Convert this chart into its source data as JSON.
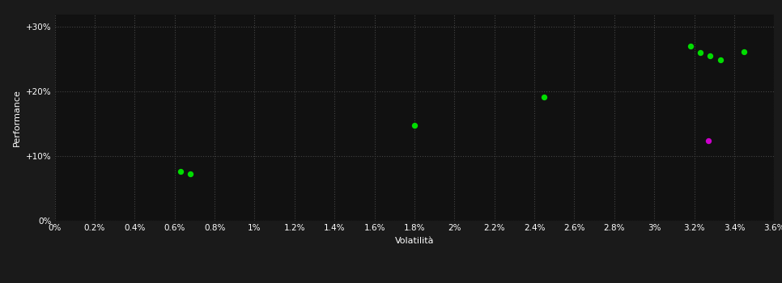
{
  "background_color": "#1a1a1a",
  "plot_bg_color": "#111111",
  "grid_color": "#444444",
  "text_color": "#ffffff",
  "xlabel": "Volatilità",
  "ylabel": "Performance",
  "xlim": [
    0.0,
    0.036
  ],
  "ylim": [
    0.0,
    0.32
  ],
  "xtick_labels": [
    "0%",
    "0.2%",
    "0.4%",
    "0.6%",
    "0.8%",
    "1%",
    "1.2%",
    "1.4%",
    "1.6%",
    "1.8%",
    "2%",
    "2.2%",
    "2.4%",
    "2.6%",
    "2.8%",
    "3%",
    "3.2%",
    "3.4%",
    "3.6%"
  ],
  "xtick_values": [
    0.0,
    0.002,
    0.004,
    0.006,
    0.008,
    0.01,
    0.012,
    0.014,
    0.016,
    0.018,
    0.02,
    0.022,
    0.024,
    0.026,
    0.028,
    0.03,
    0.032,
    0.034,
    0.036
  ],
  "ytick_labels": [
    "0%",
    "+10%",
    "+20%",
    "+30%"
  ],
  "ytick_values": [
    0.0,
    0.1,
    0.2,
    0.3
  ],
  "green_points": [
    [
      0.0063,
      0.076
    ],
    [
      0.0068,
      0.073
    ],
    [
      0.018,
      0.148
    ],
    [
      0.0245,
      0.191
    ],
    [
      0.0318,
      0.271
    ],
    [
      0.0323,
      0.261
    ],
    [
      0.0328,
      0.255
    ],
    [
      0.0333,
      0.249
    ],
    [
      0.0345,
      0.262
    ]
  ],
  "magenta_points": [
    [
      0.0327,
      0.124
    ]
  ],
  "marker_size": 28,
  "green_color": "#00dd00",
  "magenta_color": "#cc00cc",
  "font_size_label": 8,
  "font_size_tick": 7.5,
  "font_size_ylabel": 8
}
